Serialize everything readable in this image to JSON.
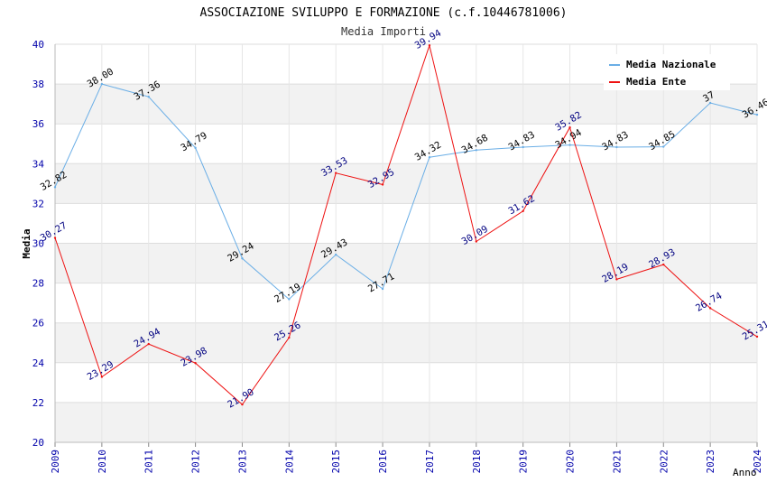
{
  "chart_data": {
    "type": "line",
    "title": "ASSOCIAZIONE SVILUPPO E FORMAZIONE (c.f.10446781006)",
    "subtitle": "Media Importi",
    "xlabel": "Anno",
    "ylabel": "Media",
    "ylim": [
      20,
      40
    ],
    "yticks": [
      "20",
      "22",
      "24",
      "26",
      "28",
      "30",
      "32",
      "34",
      "36",
      "38",
      "40"
    ],
    "categories": [
      "2009",
      "2010",
      "2011",
      "2012",
      "2013",
      "2014",
      "2015",
      "2016",
      "2017",
      "2018",
      "2019",
      "2020",
      "2021",
      "2022",
      "2023",
      "2024"
    ],
    "grid": "horizontal bands",
    "legend_position": "top-right",
    "series": [
      {
        "name": "Media Nazionale",
        "color": "#6aaee6",
        "values": [
          32.82,
          38.0,
          37.36,
          34.79,
          29.24,
          27.19,
          29.43,
          27.71,
          34.32,
          34.68,
          34.83,
          34.94,
          34.83,
          34.85,
          37.05,
          36.46
        ],
        "labels": [
          "32.82",
          "38.00",
          "37.36",
          "34.79",
          "29.24",
          "27.19",
          "29.43",
          "27.71",
          "34.32",
          "34.68",
          "34.83",
          "34.94",
          "34.83",
          "34.85",
          "37",
          "36.46"
        ]
      },
      {
        "name": "Media Ente",
        "color": "#ee1111",
        "values": [
          30.27,
          23.29,
          24.94,
          23.98,
          21.9,
          25.26,
          33.53,
          32.95,
          39.94,
          30.09,
          31.62,
          35.82,
          28.19,
          28.93,
          26.74,
          25.31
        ],
        "labels": [
          "30.27",
          "23.29",
          "24.94",
          "23.98",
          "21.90",
          "25.26",
          "33.53",
          "32.95",
          "39.94",
          "30.09",
          "31.62",
          "35.82",
          "28.19",
          "28.93",
          "26.74",
          "25.31"
        ]
      }
    ]
  }
}
